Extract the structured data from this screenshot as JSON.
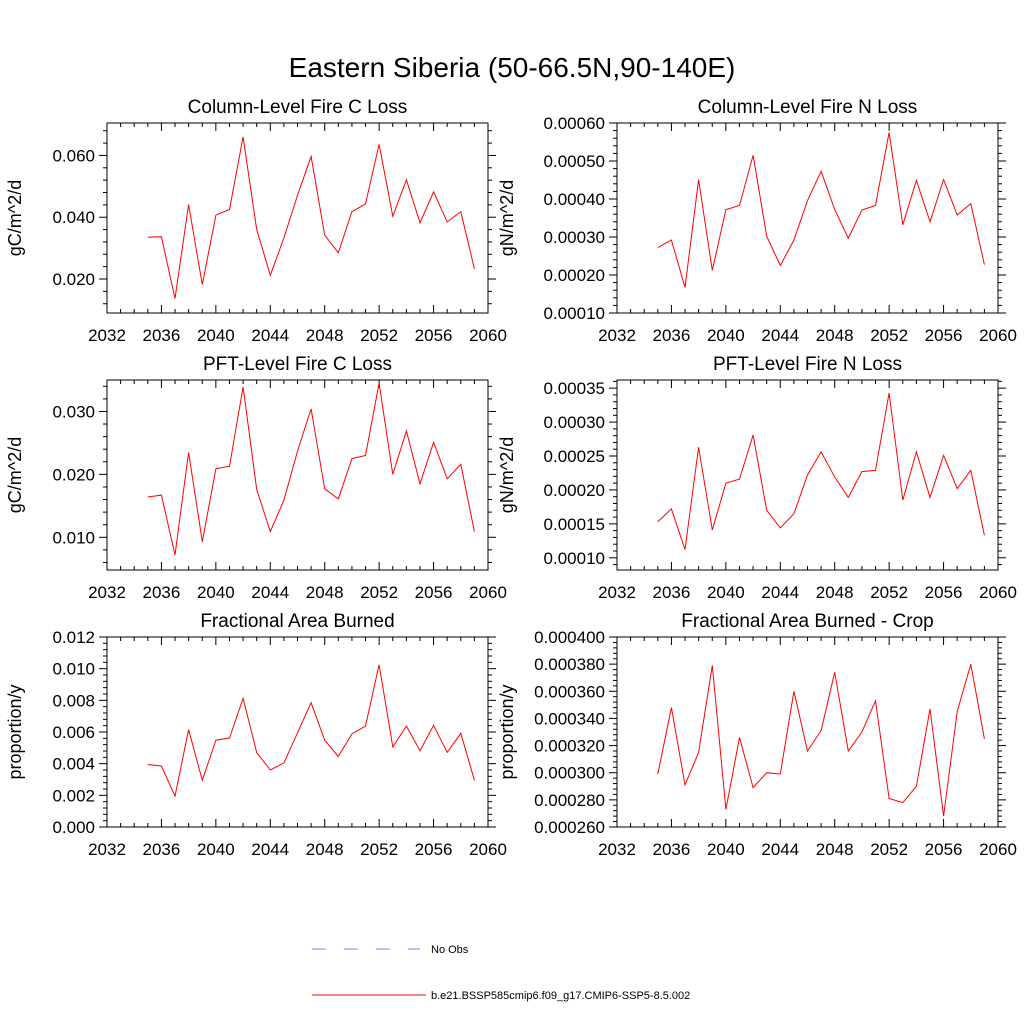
{
  "figure": {
    "title": "Eastern Siberia (50-66.5N,90-140E)",
    "series_color": "#ff0000",
    "obs_color": "#7f7fff"
  },
  "legend": {
    "obs_label": "No Obs",
    "model_label": "b.e21.BSSP585cmip6.f09_g17.CMIP6-SSP5-8.5.002"
  },
  "chart_data": [
    {
      "type": "line",
      "title": "Column-Level Fire C Loss",
      "xlabel": "",
      "ylabel": "gC/m^2/d",
      "xlim": [
        2032,
        2060
      ],
      "ylim": [
        0.009,
        0.0705
      ],
      "xticks": [
        2032,
        2036,
        2040,
        2044,
        2048,
        2052,
        2056,
        2060
      ],
      "yticks": [
        0.02,
        0.04,
        0.06
      ],
      "ytick_labels": [
        "0.020",
        "0.040",
        "0.060"
      ],
      "x": [
        2035,
        2036,
        2037,
        2038,
        2039,
        2040,
        2041,
        2042,
        2043,
        2044,
        2045,
        2046,
        2047,
        2048,
        2049,
        2050,
        2051,
        2052,
        2053,
        2054,
        2055,
        2056,
        2057,
        2058,
        2059
      ],
      "series": [
        {
          "values": [
            0.0335,
            0.0337,
            0.0137,
            0.0441,
            0.0182,
            0.0407,
            0.0425,
            0.066,
            0.036,
            0.0212,
            0.0333,
            0.0471,
            0.0597,
            0.0342,
            0.0285,
            0.0418,
            0.0443,
            0.0636,
            0.0403,
            0.0521,
            0.0382,
            0.0482,
            0.0385,
            0.0418,
            0.0233
          ]
        }
      ]
    },
    {
      "type": "line",
      "title": "Column-Level Fire N Loss",
      "xlabel": "",
      "ylabel": "gN/m^2/d",
      "xlim": [
        2032,
        2060
      ],
      "ylim": [
        0.0001,
        0.0006
      ],
      "xticks": [
        2032,
        2036,
        2040,
        2044,
        2048,
        2052,
        2056,
        2060
      ],
      "yticks": [
        0.0001,
        0.0002,
        0.0003,
        0.0004,
        0.0005,
        0.0006
      ],
      "ytick_labels": [
        "0.00010",
        "0.00020",
        "0.00030",
        "0.00040",
        "0.00050",
        "0.00060"
      ],
      "x": [
        2035,
        2036,
        2037,
        2038,
        2039,
        2040,
        2041,
        2042,
        2043,
        2044,
        2045,
        2046,
        2047,
        2048,
        2049,
        2050,
        2051,
        2052,
        2053,
        2054,
        2055,
        2056,
        2057,
        2058,
        2059
      ],
      "series": [
        {
          "values": [
            0.000272,
            0.000292,
            0.000167,
            0.000451,
            0.000212,
            0.000372,
            0.000383,
            0.000515,
            0.000302,
            0.000225,
            0.000292,
            0.000396,
            0.000473,
            0.000372,
            0.000297,
            0.000371,
            0.000383,
            0.000575,
            0.000332,
            0.000449,
            0.00034,
            0.000451,
            0.000358,
            0.000388,
            0.000227
          ]
        }
      ]
    },
    {
      "type": "line",
      "title": "PFT-Level Fire C Loss",
      "xlabel": "",
      "ylabel": "gC/m^2/d",
      "xlim": [
        2032,
        2060
      ],
      "ylim": [
        0.0048,
        0.035
      ],
      "xticks": [
        2032,
        2036,
        2040,
        2044,
        2048,
        2052,
        2056,
        2060
      ],
      "yticks": [
        0.01,
        0.02,
        0.03
      ],
      "ytick_labels": [
        "0.010",
        "0.020",
        "0.030"
      ],
      "x": [
        2035,
        2036,
        2037,
        2038,
        2039,
        2040,
        2041,
        2042,
        2043,
        2044,
        2045,
        2046,
        2047,
        2048,
        2049,
        2050,
        2051,
        2052,
        2053,
        2054,
        2055,
        2056,
        2057,
        2058,
        2059
      ],
      "series": [
        {
          "values": [
            0.0164,
            0.0167,
            0.0072,
            0.0235,
            0.0093,
            0.0209,
            0.0213,
            0.0339,
            0.0176,
            0.0109,
            0.0159,
            0.0237,
            0.0304,
            0.0177,
            0.0161,
            0.0225,
            0.023,
            0.0345,
            0.02,
            0.0269,
            0.0185,
            0.0251,
            0.0193,
            0.0216,
            0.0109
          ]
        }
      ]
    },
    {
      "type": "line",
      "title": "PFT-Level Fire N Loss",
      "xlabel": "",
      "ylabel": "gN/m^2/d",
      "xlim": [
        2032,
        2060
      ],
      "ylim": [
        8.2e-05,
        0.000362
      ],
      "xticks": [
        2032,
        2036,
        2040,
        2044,
        2048,
        2052,
        2056,
        2060
      ],
      "yticks": [
        0.0001,
        0.00015,
        0.0002,
        0.00025,
        0.0003,
        0.00035
      ],
      "ytick_labels": [
        "0.00010",
        "0.00015",
        "0.00020",
        "0.00025",
        "0.00030",
        "0.00035"
      ],
      "x": [
        2035,
        2036,
        2037,
        2038,
        2039,
        2040,
        2041,
        2042,
        2043,
        2044,
        2045,
        2046,
        2047,
        2048,
        2049,
        2050,
        2051,
        2052,
        2053,
        2054,
        2055,
        2056,
        2057,
        2058,
        2059
      ],
      "series": [
        {
          "values": [
            0.000153,
            0.000172,
            0.000112,
            0.000263,
            0.000141,
            0.00021,
            0.000216,
            0.000281,
            0.00017,
            0.000144,
            0.000165,
            0.000222,
            0.000256,
            0.000219,
            0.000189,
            0.000227,
            0.000229,
            0.000343,
            0.000185,
            0.000256,
            0.000189,
            0.000251,
            0.000202,
            0.000229,
            0.000133
          ]
        }
      ]
    },
    {
      "type": "line",
      "title": "Fractional Area Burned",
      "xlabel": "",
      "ylabel": "proportion/y",
      "xlim": [
        2032,
        2060
      ],
      "ylim": [
        0.0,
        0.012
      ],
      "xticks": [
        2032,
        2036,
        2040,
        2044,
        2048,
        2052,
        2056,
        2060
      ],
      "yticks": [
        0.0,
        0.002,
        0.004,
        0.006,
        0.008,
        0.01,
        0.012
      ],
      "ytick_labels": [
        "0.000",
        "0.002",
        "0.004",
        "0.006",
        "0.008",
        "0.010",
        "0.012"
      ],
      "x": [
        2035,
        2036,
        2037,
        2038,
        2039,
        2040,
        2041,
        2042,
        2043,
        2044,
        2045,
        2046,
        2047,
        2048,
        2049,
        2050,
        2051,
        2052,
        2053,
        2054,
        2055,
        2056,
        2057,
        2058,
        2059
      ],
      "series": [
        {
          "values": [
            0.00395,
            0.00385,
            0.00195,
            0.00615,
            0.00295,
            0.00548,
            0.00562,
            0.00812,
            0.0047,
            0.0036,
            0.00405,
            0.00595,
            0.00785,
            0.00548,
            0.00445,
            0.00588,
            0.00638,
            0.01025,
            0.00505,
            0.00638,
            0.00482,
            0.00642,
            0.00472,
            0.00592,
            0.00295
          ]
        }
      ]
    },
    {
      "type": "line",
      "title": "Fractional Area Burned - Crop",
      "xlabel": "",
      "ylabel": "proportion/y",
      "xlim": [
        2032,
        2060
      ],
      "ylim": [
        0.00026,
        0.0004
      ],
      "xticks": [
        2032,
        2036,
        2040,
        2044,
        2048,
        2052,
        2056,
        2060
      ],
      "yticks": [
        0.00026,
        0.00028,
        0.0003,
        0.00032,
        0.00034,
        0.00036,
        0.00038,
        0.0004
      ],
      "ytick_labels": [
        "0.000260",
        "0.000280",
        "0.000300",
        "0.000320",
        "0.000340",
        "0.000360",
        "0.000380",
        "0.000400"
      ],
      "x": [
        2035,
        2036,
        2037,
        2038,
        2039,
        2040,
        2041,
        2042,
        2043,
        2044,
        2045,
        2046,
        2047,
        2048,
        2049,
        2050,
        2051,
        2052,
        2053,
        2054,
        2055,
        2056,
        2057,
        2058,
        2059
      ],
      "series": [
        {
          "values": [
            0.000299,
            0.000348,
            0.000291,
            0.000315,
            0.000379,
            0.000273,
            0.000326,
            0.000289,
            0.0003,
            0.000299,
            0.00036,
            0.000316,
            0.000331,
            0.000374,
            0.000316,
            0.00033,
            0.000353,
            0.000281,
            0.000278,
            0.00029,
            0.000347,
            0.000268,
            0.000345,
            0.00038,
            0.000325
          ]
        }
      ]
    }
  ]
}
